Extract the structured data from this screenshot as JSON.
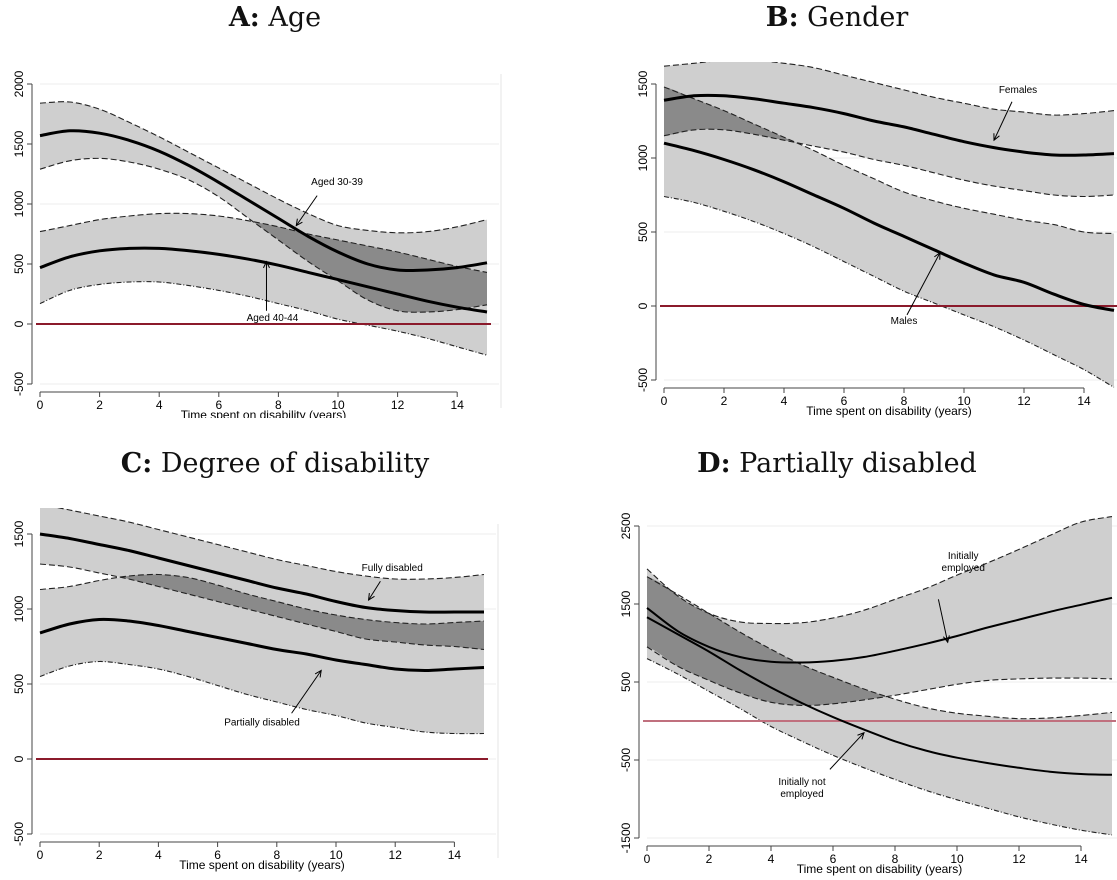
{
  "colors": {
    "band": "#cfcfcf",
    "overlap": "#8a8a8a",
    "curve": "#000000",
    "zero_line": "#8b1a2b",
    "zero_line_d": "#c0707e",
    "grid": "#ececec",
    "axis": "#444444"
  },
  "chart_data": [
    {
      "type": "line",
      "panel_letter": "A:",
      "panel_name": "Age",
      "xlabel": "Time spent on disability (years)",
      "ylabel": "",
      "xlim": [
        0,
        15
      ],
      "ylim": [
        -500,
        2000
      ],
      "xticks": [
        0,
        2,
        4,
        6,
        8,
        10,
        12,
        14
      ],
      "yticks": [
        -500,
        0,
        500,
        1000,
        1500,
        2000
      ],
      "grid": true,
      "x": [
        0,
        1,
        2,
        3,
        4,
        5,
        6,
        7,
        8,
        9,
        10,
        11,
        12,
        13,
        14,
        15
      ],
      "series": [
        {
          "name": "Aged 30-39",
          "values": [
            1570,
            1610,
            1590,
            1530,
            1440,
            1320,
            1180,
            1030,
            880,
            730,
            600,
            500,
            450,
            450,
            470,
            510
          ],
          "upper": [
            1840,
            1850,
            1790,
            1680,
            1560,
            1430,
            1300,
            1170,
            1040,
            920,
            820,
            780,
            760,
            770,
            810,
            870
          ],
          "lower": [
            1290,
            1360,
            1380,
            1350,
            1290,
            1200,
            1060,
            880,
            700,
            520,
            360,
            200,
            110,
            100,
            120,
            160
          ],
          "stroke_width": 3
        },
        {
          "name": "Aged 40-44",
          "values": [
            470,
            560,
            610,
            630,
            630,
            610,
            580,
            540,
            490,
            430,
            370,
            310,
            250,
            190,
            140,
            100
          ],
          "upper": [
            770,
            820,
            870,
            900,
            920,
            920,
            900,
            860,
            810,
            750,
            700,
            650,
            600,
            540,
            480,
            430
          ],
          "lower": [
            170,
            280,
            330,
            350,
            350,
            320,
            280,
            230,
            170,
            110,
            40,
            -10,
            -60,
            -120,
            -190,
            -260
          ],
          "stroke_width": 3
        }
      ],
      "annotations": [
        {
          "text": "Aged 30-39",
          "tx": 9.1,
          "ty": 1160,
          "ax": 9.3,
          "ay": 1070,
          "bx": 8.6,
          "by": 820,
          "anchor": "start"
        },
        {
          "text": "Aged 40-44",
          "tx": 7.8,
          "ty": 25,
          "ax": 7.6,
          "ay": 110,
          "bx": 7.6,
          "by": 520,
          "anchor": "middle"
        }
      ]
    },
    {
      "type": "line",
      "panel_letter": "B:",
      "panel_name": "Gender",
      "xlabel": "Time spent on disability (years)",
      "ylabel": "",
      "xlim": [
        0,
        15
      ],
      "ylim": [
        -500,
        1500
      ],
      "xticks": [
        0,
        2,
        4,
        6,
        8,
        10,
        12,
        14
      ],
      "yticks": [
        -500,
        0,
        500,
        1000,
        1500
      ],
      "grid": true,
      "x": [
        0,
        1,
        2,
        3,
        4,
        5,
        6,
        7,
        8,
        9,
        10,
        11,
        12,
        13,
        14,
        15
      ],
      "series": [
        {
          "name": "Females",
          "values": [
            1390,
            1420,
            1420,
            1400,
            1370,
            1340,
            1300,
            1250,
            1210,
            1160,
            1110,
            1070,
            1040,
            1020,
            1020,
            1030
          ],
          "upper": [
            1620,
            1640,
            1660,
            1660,
            1640,
            1610,
            1560,
            1510,
            1460,
            1410,
            1370,
            1330,
            1310,
            1290,
            1300,
            1320
          ],
          "lower": [
            1150,
            1190,
            1190,
            1160,
            1120,
            1080,
            1040,
            990,
            950,
            900,
            850,
            810,
            780,
            750,
            740,
            750
          ],
          "stroke_width": 3
        },
        {
          "name": "Males",
          "values": [
            1100,
            1050,
            990,
            920,
            840,
            750,
            660,
            560,
            470,
            380,
            290,
            210,
            160,
            80,
            10,
            -30
          ],
          "upper": [
            1480,
            1400,
            1320,
            1230,
            1140,
            1050,
            950,
            860,
            770,
            710,
            660,
            620,
            580,
            550,
            500,
            490
          ],
          "lower": [
            740,
            700,
            640,
            570,
            490,
            400,
            300,
            200,
            100,
            20,
            -60,
            -140,
            -230,
            -330,
            -430,
            -550
          ],
          "stroke_width": 3
        }
      ],
      "annotations": [
        {
          "text": "Females",
          "tx": 11.8,
          "ty": 1440,
          "ax": 11.6,
          "ay": 1380,
          "bx": 11.0,
          "by": 1120,
          "anchor": "middle"
        },
        {
          "text": "Males",
          "tx": 8.0,
          "ty": -120,
          "ax": 8.1,
          "ay": -60,
          "bx": 9.2,
          "by": 360,
          "anchor": "middle"
        }
      ]
    },
    {
      "type": "line",
      "panel_letter": "C:",
      "panel_name": "Degree of disability",
      "xlabel": "Time spent on disability (years)",
      "ylabel": "",
      "xlim": [
        0,
        15
      ],
      "ylim": [
        -500,
        1500
      ],
      "xticks": [
        0,
        2,
        4,
        6,
        8,
        10,
        12,
        14
      ],
      "yticks": [
        -500,
        0,
        500,
        1000,
        1500
      ],
      "grid": true,
      "x": [
        0,
        1,
        2,
        3,
        4,
        5,
        6,
        7,
        8,
        9,
        10,
        11,
        12,
        13,
        14,
        15
      ],
      "series": [
        {
          "name": "Fully disabled",
          "values": [
            1500,
            1470,
            1430,
            1390,
            1340,
            1290,
            1240,
            1190,
            1140,
            1100,
            1050,
            1010,
            990,
            980,
            980,
            980
          ],
          "upper": [
            1700,
            1660,
            1620,
            1580,
            1530,
            1480,
            1430,
            1380,
            1330,
            1290,
            1250,
            1220,
            1200,
            1200,
            1210,
            1230
          ],
          "lower": [
            1300,
            1280,
            1240,
            1200,
            1150,
            1100,
            1050,
            1000,
            950,
            900,
            850,
            800,
            780,
            760,
            750,
            730
          ],
          "stroke_width": 3
        },
        {
          "name": "Partially disabled",
          "values": [
            840,
            900,
            930,
            920,
            890,
            850,
            810,
            770,
            730,
            700,
            660,
            630,
            600,
            590,
            600,
            610
          ],
          "upper": [
            1130,
            1150,
            1190,
            1220,
            1230,
            1210,
            1160,
            1100,
            1050,
            1000,
            960,
            930,
            910,
            900,
            910,
            920
          ],
          "lower": [
            550,
            620,
            650,
            630,
            600,
            550,
            490,
            430,
            380,
            330,
            290,
            240,
            210,
            180,
            170,
            170
          ],
          "stroke_width": 3
        }
      ],
      "annotations": [
        {
          "text": "Fully disabled",
          "tx": 11.9,
          "ty": 1255,
          "ax": 11.5,
          "ay": 1185,
          "bx": 11.1,
          "by": 1060,
          "anchor": "middle"
        },
        {
          "text": "Partially disabled",
          "tx": 7.5,
          "ty": 225,
          "ax": 8.5,
          "ay": 305,
          "bx": 9.5,
          "by": 590,
          "anchor": "middle"
        }
      ]
    },
    {
      "type": "line",
      "panel_letter": "D:",
      "panel_name": "Partially disabled",
      "xlabel": "Time spent on disability (years)",
      "ylabel": "",
      "xlim": [
        0,
        15
      ],
      "ylim": [
        -1500,
        2500
      ],
      "xticks": [
        0,
        2,
        4,
        6,
        8,
        10,
        12,
        14
      ],
      "yticks": [
        -1500,
        -500,
        500,
        1500,
        2500
      ],
      "grid": true,
      "zero_line_color": "zero_line_d",
      "x": [
        0,
        1,
        2,
        3,
        4,
        5,
        6,
        7,
        8,
        9,
        10,
        11,
        12,
        13,
        14,
        15
      ],
      "series": [
        {
          "name": "Initially employed",
          "values": [
            1450,
            1150,
            950,
            820,
            760,
            750,
            770,
            820,
            900,
            990,
            1090,
            1200,
            1300,
            1400,
            1490,
            1580
          ],
          "upper": [
            1950,
            1600,
            1380,
            1270,
            1250,
            1260,
            1320,
            1420,
            1560,
            1700,
            1870,
            2030,
            2200,
            2380,
            2550,
            2620
          ],
          "lower": [
            950,
            700,
            520,
            360,
            240,
            200,
            220,
            270,
            330,
            400,
            470,
            520,
            540,
            550,
            550,
            540
          ],
          "stroke_width": 2
        },
        {
          "name": "Initially not employed",
          "values": [
            1330,
            1110,
            890,
            650,
            430,
            230,
            50,
            -110,
            -260,
            -380,
            -470,
            -540,
            -600,
            -650,
            -680,
            -690
          ],
          "upper": [
            1850,
            1620,
            1380,
            1140,
            920,
            720,
            560,
            410,
            280,
            170,
            100,
            60,
            30,
            40,
            70,
            110
          ],
          "lower": [
            800,
            600,
            380,
            160,
            -70,
            -260,
            -440,
            -600,
            -750,
            -890,
            -1010,
            -1120,
            -1230,
            -1320,
            -1400,
            -1460
          ],
          "stroke_width": 2
        }
      ],
      "annotations": [
        {
          "text": "Initially",
          "text2": "employed",
          "tx": 10.2,
          "ty": 2080,
          "ax": 9.4,
          "ay": 1560,
          "bx": 9.7,
          "by": 1010,
          "anchor": "middle"
        },
        {
          "text": "Initially not",
          "text2": "employed",
          "tx": 5.0,
          "ty": -820,
          "ax": 5.9,
          "ay": -620,
          "bx": 7.0,
          "by": -150,
          "anchor": "middle"
        }
      ]
    }
  ]
}
